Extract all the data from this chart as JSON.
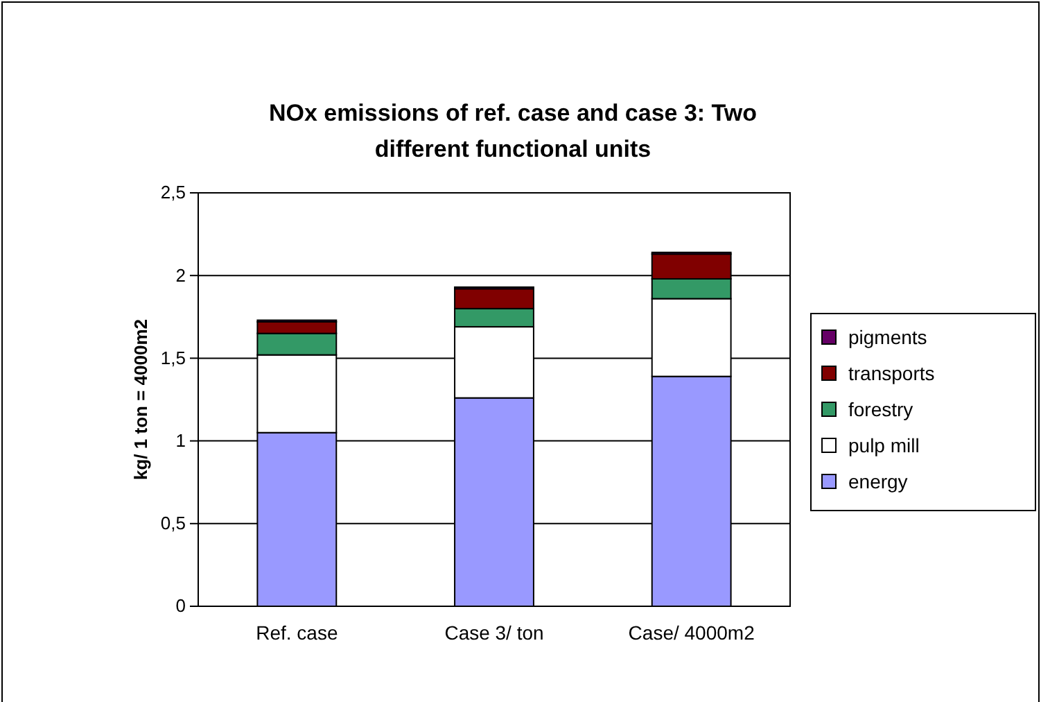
{
  "chart_data": {
    "type": "bar",
    "title": "NOx emissions of ref. case and case 3: Two different functional units",
    "ylabel": "kg/ 1 ton = 4000m2",
    "categories": [
      "Ref. case",
      "Case 3/ ton",
      "Case/ 4000m2"
    ],
    "stacked": true,
    "series": [
      {
        "name": "energy",
        "color": "#9999ff",
        "values": [
          1.05,
          1.26,
          1.39
        ]
      },
      {
        "name": "pulp mill",
        "color": "#ffffff",
        "values": [
          0.47,
          0.43,
          0.47
        ]
      },
      {
        "name": "forestry",
        "color": "#339966",
        "values": [
          0.13,
          0.11,
          0.12
        ]
      },
      {
        "name": "transports",
        "color": "#800000",
        "values": [
          0.07,
          0.12,
          0.15
        ]
      },
      {
        "name": "pigments",
        "color": "#660066",
        "values": [
          0.01,
          0.01,
          0.01
        ]
      }
    ],
    "ylim": [
      0,
      2.5
    ],
    "yticks": [
      {
        "value": 0,
        "label": "0"
      },
      {
        "value": 0.5,
        "label": "0,5"
      },
      {
        "value": 1,
        "label": "1"
      },
      {
        "value": 1.5,
        "label": "1,5"
      },
      {
        "value": 2,
        "label": "2"
      },
      {
        "value": 2.5,
        "label": "2,5"
      }
    ],
    "grid": "y",
    "legend": "right"
  }
}
